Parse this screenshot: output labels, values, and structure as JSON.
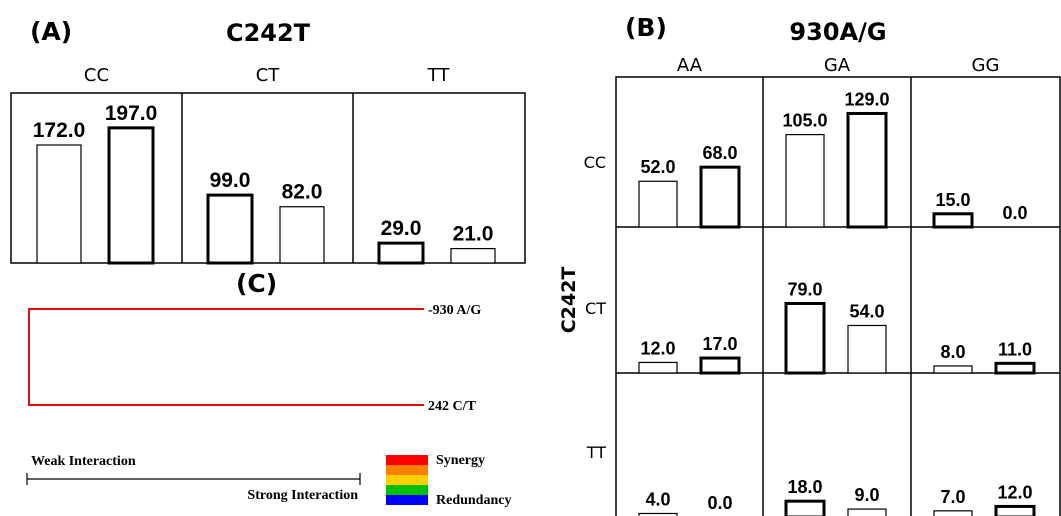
{
  "panel_a": {
    "letter": "(A)",
    "title": "C242T"
  },
  "panel_b": {
    "letter": "(B)",
    "title": "930A/G",
    "ylabel": "C242T"
  },
  "panel_c": {
    "letter": "(C)",
    "leaf_top": "-930 A/G",
    "leaf_bottom": "242 C/T",
    "weak_label": "Weak Interaction",
    "strong_label": "Strong Interaction",
    "synergy_label": "Synergy",
    "redundancy_label": "Redundancy",
    "line_color": "#e01010",
    "legend_colors": [
      "#ff0000",
      "#ff8000",
      "#ffd000",
      "#00c000",
      "#0000ff"
    ]
  },
  "chart_data": [
    {
      "type": "bar",
      "panel": "A",
      "title": "C242T",
      "categories": [
        "CC",
        "CT",
        "TT"
      ],
      "ylim": [
        0,
        200
      ],
      "cells": [
        {
          "category": "CC",
          "bars": [
            {
              "value": 172.0,
              "label": "172.0",
              "thick": false
            },
            {
              "value": 197.0,
              "label": "197.0",
              "thick": true
            }
          ]
        },
        {
          "category": "CT",
          "bars": [
            {
              "value": 99.0,
              "label": "99.0",
              "thick": true
            },
            {
              "value": 82.0,
              "label": "82.0",
              "thick": false
            }
          ]
        },
        {
          "category": "TT",
          "bars": [
            {
              "value": 29.0,
              "label": "29.0",
              "thick": true
            },
            {
              "value": 21.0,
              "label": "21.0",
              "thick": false
            }
          ]
        }
      ]
    },
    {
      "type": "bar",
      "panel": "B",
      "title": "930A/G",
      "ylabel": "C242T",
      "columns": [
        "AA",
        "GA",
        "GG"
      ],
      "rows": [
        "CC",
        "CT",
        "TT"
      ],
      "ylim": [
        0,
        140
      ],
      "cells": [
        {
          "row": "CC",
          "col": "AA",
          "bars": [
            {
              "value": 52.0,
              "label": "52.0",
              "thick": false
            },
            {
              "value": 68.0,
              "label": "68.0",
              "thick": true
            }
          ]
        },
        {
          "row": "CC",
          "col": "GA",
          "bars": [
            {
              "value": 105.0,
              "label": "105.0",
              "thick": false
            },
            {
              "value": 129.0,
              "label": "129.0",
              "thick": true
            }
          ]
        },
        {
          "row": "CC",
          "col": "GG",
          "bars": [
            {
              "value": 15.0,
              "label": "15.0",
              "thick": true
            },
            {
              "value": 0.0,
              "label": "0.0",
              "thick": false
            }
          ]
        },
        {
          "row": "CT",
          "col": "AA",
          "bars": [
            {
              "value": 12.0,
              "label": "12.0",
              "thick": false
            },
            {
              "value": 17.0,
              "label": "17.0",
              "thick": true
            }
          ]
        },
        {
          "row": "CT",
          "col": "GA",
          "bars": [
            {
              "value": 79.0,
              "label": "79.0",
              "thick": true
            },
            {
              "value": 54.0,
              "label": "54.0",
              "thick": false
            }
          ]
        },
        {
          "row": "CT",
          "col": "GG",
          "bars": [
            {
              "value": 8.0,
              "label": "8.0",
              "thick": false
            },
            {
              "value": 11.0,
              "label": "11.0",
              "thick": true
            }
          ]
        },
        {
          "row": "TT",
          "col": "AA",
          "bars": [
            {
              "value": 4.0,
              "label": "4.0",
              "thick": false
            },
            {
              "value": 0.0,
              "label": "0.0",
              "thick": false
            }
          ]
        },
        {
          "row": "TT",
          "col": "GA",
          "bars": [
            {
              "value": 18.0,
              "label": "18.0",
              "thick": true
            },
            {
              "value": 9.0,
              "label": "9.0",
              "thick": false
            }
          ]
        },
        {
          "row": "TT",
          "col": "GG",
          "bars": [
            {
              "value": 7.0,
              "label": "7.0",
              "thick": false
            },
            {
              "value": 12.0,
              "label": "12.0",
              "thick": true
            }
          ]
        }
      ]
    }
  ]
}
